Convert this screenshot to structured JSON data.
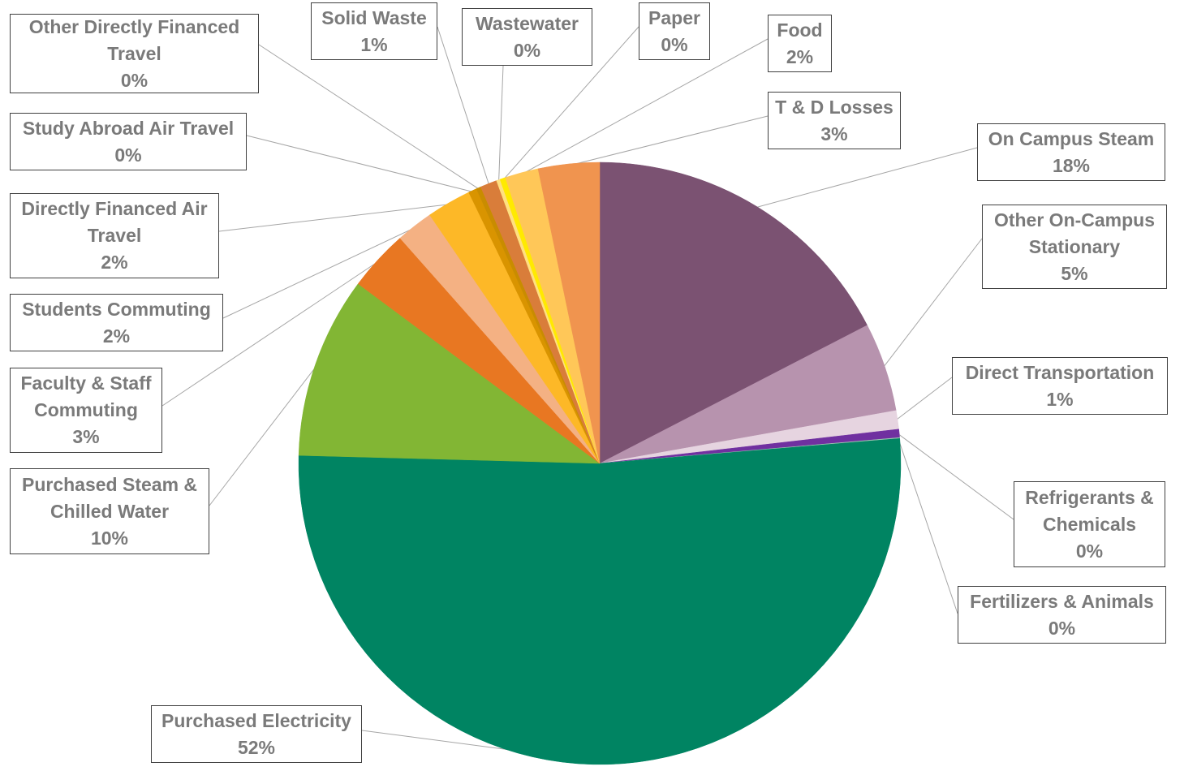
{
  "chart_data": {
    "type": "pie",
    "title": "",
    "start_angle_deg": 0,
    "direction": "clockwise",
    "legend": "none",
    "slices": [
      {
        "label": "On Campus Steam",
        "value": 17.5,
        "display": "18%",
        "color": "#7b5272"
      },
      {
        "label": "Other On-Campus Stationary",
        "value": 4.8,
        "display": "5%",
        "color": "#b793ae"
      },
      {
        "label": "Direct Transportation",
        "value": 1.0,
        "display": "1%",
        "color": "#e6d4e0"
      },
      {
        "label": "Refrigerants & Chemicals",
        "value": 0.45,
        "display": "0%",
        "color": "#7030a0"
      },
      {
        "label": "Fertilizers & Animals",
        "value": 0.05,
        "display": "0%",
        "color": "#9dc3b0"
      },
      {
        "label": "Purchased Electricity",
        "value": 52.0,
        "display": "52%",
        "color": "#008462"
      },
      {
        "label": "Purchased Steam & Chilled Water",
        "value": 9.8,
        "display": "10%",
        "color": "#82b634"
      },
      {
        "label": "Faculty & Staff Commuting",
        "value": 3.3,
        "display": "3%",
        "color": "#e87722"
      },
      {
        "label": "Students Commuting",
        "value": 2.0,
        "display": "2%",
        "color": "#f4b183"
      },
      {
        "label": "Directly Financed Air Travel",
        "value": 2.4,
        "display": "2%",
        "color": "#fdb827"
      },
      {
        "label": "Study Abroad Air Travel",
        "value": 0.45,
        "display": "0%",
        "color": "#d99400"
      },
      {
        "label": "Other Directly Financed Travel",
        "value": 0.25,
        "display": "0%",
        "color": "#c98c00"
      },
      {
        "label": "Solid Waste",
        "value": 0.9,
        "display": "1%",
        "color": "#d97d3a"
      },
      {
        "label": "Wastewater",
        "value": 0.2,
        "display": "0%",
        "color": "#ffe080"
      },
      {
        "label": "Paper",
        "value": 0.3,
        "display": "0%",
        "color": "#ffea00"
      },
      {
        "label": "Food",
        "value": 1.8,
        "display": "2%",
        "color": "#ffc758"
      },
      {
        "label": "T & D Losses",
        "value": 3.3,
        "display": "3%",
        "color": "#f0944f"
      }
    ],
    "callouts": [
      {
        "label_lines": [
          "On Campus Steam"
        ],
        "pct": "18%"
      },
      {
        "label_lines": [
          "Other On-Campus",
          "Stationary"
        ],
        "pct": "5%"
      },
      {
        "label_lines": [
          "Direct Transportation"
        ],
        "pct": "1%"
      },
      {
        "label_lines": [
          "Refrigerants &",
          "Chemicals"
        ],
        "pct": "0%"
      },
      {
        "label_lines": [
          "Fertilizers & Animals"
        ],
        "pct": "0%"
      },
      {
        "label_lines": [
          "Purchased Electricity"
        ],
        "pct": "52%"
      },
      {
        "label_lines": [
          "Purchased Steam &",
          "Chilled Water"
        ],
        "pct": "10%"
      },
      {
        "label_lines": [
          "Faculty & Staff",
          "Commuting"
        ],
        "pct": "3%"
      },
      {
        "label_lines": [
          "Students Commuting"
        ],
        "pct": "2%"
      },
      {
        "label_lines": [
          "Directly Financed Air",
          "Travel"
        ],
        "pct": "2%"
      },
      {
        "label_lines": [
          "Study Abroad Air Travel"
        ],
        "pct": "0%"
      },
      {
        "label_lines": [
          "Other Directly Financed",
          "Travel"
        ],
        "pct": "0%"
      },
      {
        "label_lines": [
          "Solid Waste"
        ],
        "pct": "1%"
      },
      {
        "label_lines": [
          "Wastewater"
        ],
        "pct": "0%"
      },
      {
        "label_lines": [
          "Paper"
        ],
        "pct": "0%"
      },
      {
        "label_lines": [
          "Food"
        ],
        "pct": "2%"
      },
      {
        "label_lines": [
          "T & D Losses"
        ],
        "pct": "3%"
      }
    ]
  }
}
